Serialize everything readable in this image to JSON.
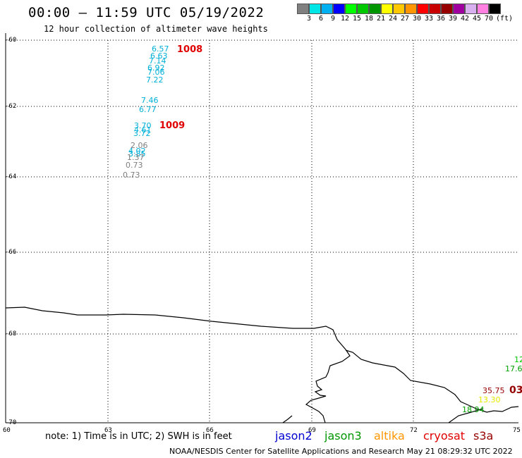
{
  "header": {
    "title": "00:00 – 11:59 UTC 05/19/2022",
    "subtitle": "12 hour collection of altimeter wave heights"
  },
  "color_scale": {
    "colors": [
      "#808080",
      "#00e5e5",
      "#00b0f0",
      "#0000ff",
      "#00ff00",
      "#00c800",
      "#009600",
      "#ffff00",
      "#ffc800",
      "#ff9600",
      "#ff0000",
      "#c80000",
      "#960000",
      "#a000a0",
      "#d8b0f0",
      "#ff80e0",
      "#000000"
    ],
    "labels": [
      "3",
      "6",
      "9",
      "12",
      "15",
      "18",
      "21",
      "24",
      "27",
      "30",
      "33",
      "36",
      "39",
      "42",
      "45",
      "70",
      "(ft)"
    ]
  },
  "axes": {
    "lat_labels": [
      "-60",
      "-62",
      "-64",
      "-66",
      "-68",
      "-70"
    ],
    "lon_labels": [
      "60",
      "63",
      "66",
      "69",
      "72",
      "75"
    ]
  },
  "observations": [
    {
      "value": "6.57",
      "color": "#00b0d8"
    },
    {
      "value": "6.63",
      "color": "#00b0d8"
    },
    {
      "value": "7.14",
      "color": "#00b0d8"
    },
    {
      "value": "6.92",
      "color": "#00b0d8"
    },
    {
      "value": "7.06",
      "color": "#00b0d8"
    },
    {
      "value": "7.22",
      "color": "#00b0d8"
    },
    {
      "value": "7.46",
      "color": "#00b0d8"
    },
    {
      "value": "6.77",
      "color": "#00b0d8"
    },
    {
      "value": "3.70",
      "color": "#00b0d8"
    },
    {
      "value": "4.61",
      "color": "#00b0d8"
    },
    {
      "value": "3.72",
      "color": "#00b0d8"
    },
    {
      "value": "2.06",
      "color": "#808080"
    },
    {
      "value": "4.02",
      "color": "#00b0d8"
    },
    {
      "value": "3.85",
      "color": "#00b0d8"
    },
    {
      "value": "1.37",
      "color": "#808080"
    },
    {
      "value": "0.73",
      "color": "#808080"
    },
    {
      "value": "0.73",
      "color": "#808080"
    },
    {
      "value": "12",
      "color": "#00c800"
    },
    {
      "value": "17.6",
      "color": "#00a000"
    },
    {
      "value": "35.75",
      "color": "#960000"
    },
    {
      "value": "03",
      "color": "#960000"
    },
    {
      "value": "13.30",
      "color": "#e8e800"
    },
    {
      "value": "18.94",
      "color": "#00a000"
    }
  ],
  "pressure_labels": [
    "1008",
    "1009"
  ],
  "legend": {
    "note": "note: 1) Time is in UTC; 2) SWH is in feet",
    "satellites": [
      {
        "name": "jason2",
        "color": "#0000d0"
      },
      {
        "name": "jason3",
        "color": "#009600"
      },
      {
        "name": "altika",
        "color": "#ff9600"
      },
      {
        "name": "cryosat",
        "color": "#e00000"
      },
      {
        "name": "s3a",
        "color": "#960000"
      }
    ]
  },
  "credit": "NOAA/NESDIS Center for Satellite Applications and Research    May 21 08:29:32 UTC 2022"
}
